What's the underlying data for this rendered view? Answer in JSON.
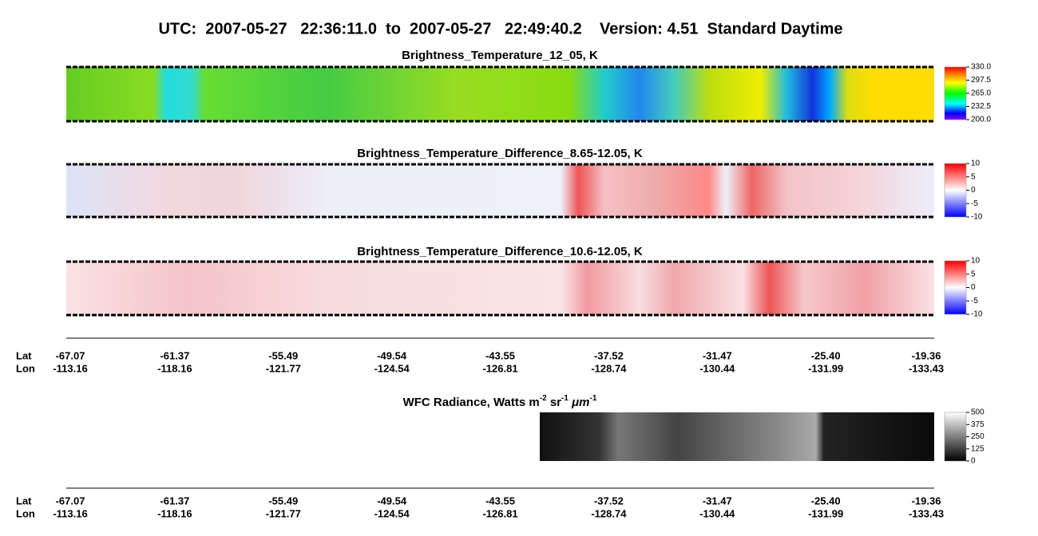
{
  "title": "UTC:  2007-05-27   22:36:11.0  to  2007-05-27   22:49:40.2    Version: 4.51  Standard Daytime",
  "panels": [
    {
      "title": "Brightness_Temperature_12_05, K",
      "colorbar": {
        "range": [
          200,
          330
        ],
        "ticks": [
          {
            "value": 330,
            "label": "330.0"
          },
          {
            "value": 297.5,
            "label": "297.5"
          },
          {
            "value": 265,
            "label": "265.0"
          },
          {
            "value": 232.5,
            "label": "232.5"
          },
          {
            "value": 200,
            "label": "200.0"
          }
        ]
      }
    },
    {
      "title": "Brightness_Temperature_Difference_8.65-12.05, K",
      "colorbar": {
        "range": [
          -10,
          10
        ],
        "ticks": [
          10,
          5,
          0,
          -5,
          -10
        ]
      }
    },
    {
      "title": "Brightness_Temperature_Difference_10.6-12.05, K",
      "colorbar": {
        "range": [
          -10,
          10
        ],
        "ticks": [
          10,
          5,
          0,
          -5,
          -10
        ]
      }
    }
  ],
  "wfc": {
    "title": [
      "WFC Radiance, Watts m",
      "-2",
      " sr",
      "-1",
      " μm",
      "-1"
    ],
    "colorbar": {
      "range": [
        0,
        500
      ],
      "ticks": [
        500,
        375,
        250,
        125,
        0
      ]
    }
  },
  "axes": [
    {
      "lat_label": "Lat",
      "lon_label": "Lon",
      "lat": [
        "-67.07",
        "-61.37",
        "-55.49",
        "-49.54",
        "-43.55",
        "-37.52",
        "-31.47",
        "-25.40",
        "-19.36"
      ],
      "lon": [
        "-113.16",
        "-118.16",
        "-121.77",
        "-124.54",
        "-126.81",
        "-128.74",
        "-130.44",
        "-131.99",
        "-133.43"
      ]
    },
    {
      "lat_label": "Lat",
      "lon_label": "Lon",
      "lat": [
        "-67.07",
        "-61.37",
        "-55.49",
        "-49.54",
        "-43.55",
        "-37.52",
        "-31.47",
        "-25.40",
        "-19.36"
      ],
      "lon": [
        "-113.16",
        "-118.16",
        "-121.77",
        "-124.54",
        "-126.81",
        "-128.74",
        "-130.44",
        "-131.99",
        "-133.43"
      ]
    }
  ]
}
